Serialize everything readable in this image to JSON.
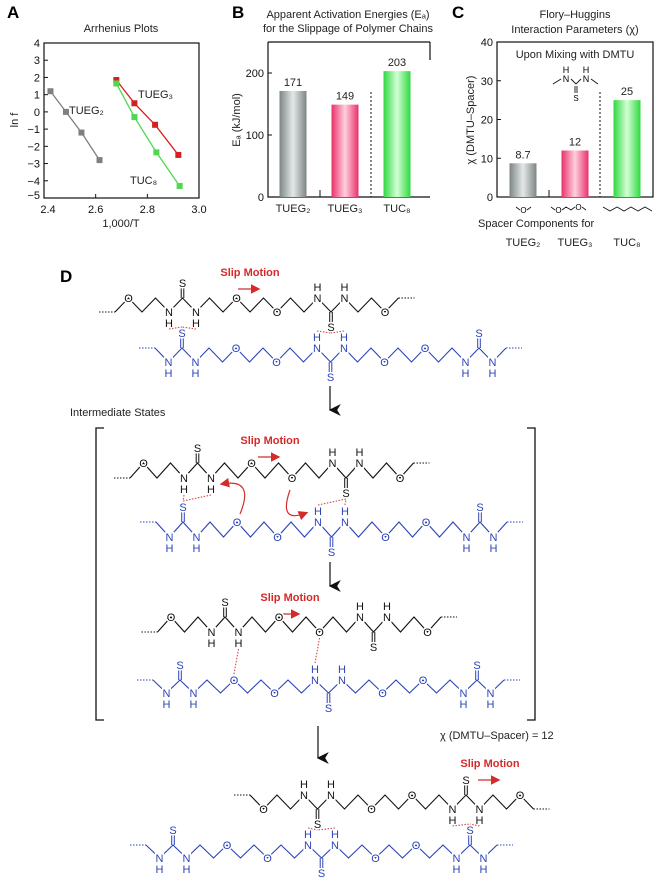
{
  "panels": {
    "A": "A",
    "B": "B",
    "C": "C",
    "D": "D"
  },
  "chart_data": [
    {
      "panel": "A",
      "type": "line",
      "title": "Arrhenius Plots",
      "xlabel": "1,000/T",
      "ylabel": "ln f",
      "xlim": [
        2.4,
        3.0
      ],
      "ylim": [
        -5,
        4
      ],
      "xticks": [
        2.4,
        2.6,
        2.8,
        3.0
      ],
      "xtick_labels": [
        "2.4",
        "2.6",
        "2.8",
        "3.0"
      ],
      "yticks": [
        -5,
        -4,
        -3,
        -2,
        -1,
        0,
        1,
        2,
        3,
        4
      ],
      "ytick_labels": [
        "−5",
        "−4",
        "−3",
        "−2",
        "−1",
        "0",
        "1",
        "2",
        "3",
        "4"
      ],
      "grid": false,
      "series": [
        {
          "name": "TUEG₂",
          "color": "#7f7f7f",
          "x": [
            2.425,
            2.485,
            2.545,
            2.615
          ],
          "y": [
            1.2,
            0.0,
            -1.2,
            -2.8
          ]
        },
        {
          "name": "TUEG₃",
          "color": "#d42020",
          "x": [
            2.68,
            2.75,
            2.83,
            2.92
          ],
          "y": [
            1.85,
            0.5,
            -0.75,
            -2.5
          ]
        },
        {
          "name": "TUC₈",
          "color": "#4fd84f",
          "x": [
            2.68,
            2.75,
            2.835,
            2.925
          ],
          "y": [
            1.65,
            -0.3,
            -2.35,
            -4.3
          ]
        }
      ]
    },
    {
      "panel": "B",
      "type": "bar",
      "title": "Apparent Activation Energies (Eₐ)",
      "subtitle": "for the Slippage of Polymer Chains",
      "ylabel": "Eₐ (kJ/mol)",
      "categories": [
        "TUEG₂",
        "TUEG₃",
        "TUC₈"
      ],
      "values": [
        171,
        149,
        203
      ],
      "value_labels": [
        "171",
        "149",
        "203"
      ],
      "ylim": [
        0,
        250
      ],
      "yticks": [
        0,
        100,
        200
      ],
      "ytick_labels": [
        "0",
        "100",
        "200"
      ],
      "colors": [
        "#8e9696",
        "#f0407a",
        "#3fe34f"
      ],
      "grid": false
    },
    {
      "panel": "C",
      "type": "bar",
      "title": "Flory–Huggins",
      "subtitle": "Interaction Parameters (χ)",
      "annotation": "Upon Mixing with DMTU",
      "ylabel": "χ (DMTU–Spacer)",
      "xlabel": "Spacer Components for",
      "categories": [
        "TUEG₂",
        "TUEG₃",
        "TUC₈"
      ],
      "values": [
        8.7,
        12,
        25
      ],
      "value_labels": [
        "8.7",
        "12",
        "25"
      ],
      "ylim": [
        0,
        40
      ],
      "yticks": [
        0,
        10,
        20,
        30,
        40
      ],
      "ytick_labels": [
        "0",
        "10",
        "20",
        "30",
        "40"
      ],
      "colors": [
        "#8e9696",
        "#f0407a",
        "#3fe34f"
      ],
      "grid": false
    }
  ],
  "dmtu": {
    "n": "N",
    "h": "H",
    "s": "S",
    "o": "O"
  },
  "diagram": {
    "slip_label": "Slip Motion",
    "intermediate_label": "Intermediate States",
    "chi_note": "χ (DMTU–Spacer) = 12",
    "colors": {
      "top_chain": "#111111",
      "bottom_chain": "#2c44b8",
      "hbond": "#d84848",
      "arrow": "#d42a2a"
    },
    "top_chain": [
      "",
      "O",
      "",
      "",
      "NH",
      "CS",
      "NH",
      "",
      "",
      "O",
      "",
      "",
      "O",
      "",
      "",
      "NH",
      "CS",
      "NH",
      "",
      "",
      "O",
      ""
    ],
    "bottom_chain": [
      "",
      "NH",
      "CS",
      "NH",
      "",
      "",
      "O",
      "",
      "",
      "O",
      "",
      "",
      "NH",
      "CS",
      "NH",
      "",
      "",
      "O",
      "",
      "",
      "O",
      "",
      "",
      "NH",
      "CS",
      "NH",
      ""
    ]
  }
}
